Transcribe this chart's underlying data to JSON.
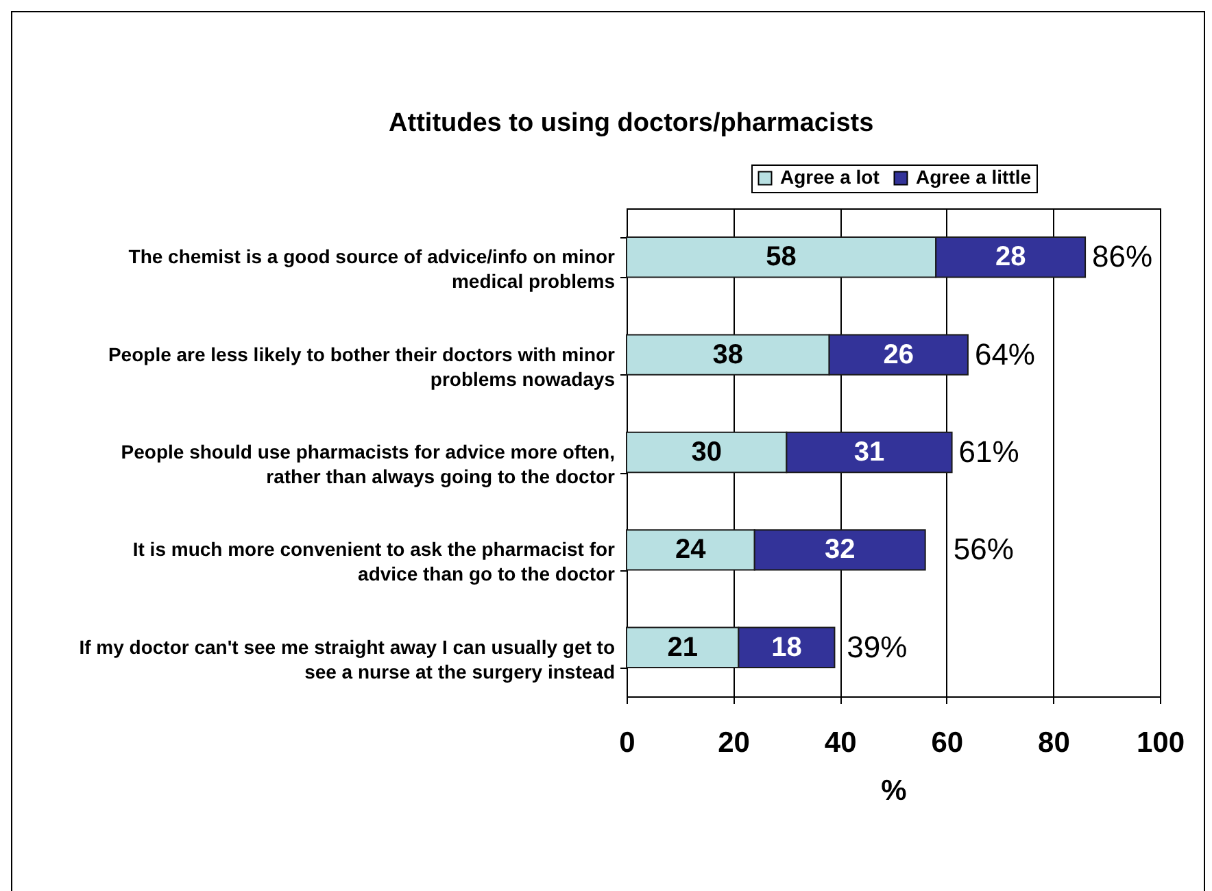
{
  "chart_data": {
    "type": "bar",
    "title": "Attitudes to using doctors/pharmacists",
    "categories": [
      "The chemist is a good source of advice/info on minor medical problems",
      "People are less likely to bother their doctors with minor problems nowadays",
      "People should use pharmacists for advice more often, rather than always going to the doctor",
      "It is much more convenient to ask the pharmacist for advice than go to the doctor",
      "If my doctor can't see me straight away I can usually get to see a nurse at the surgery instead"
    ],
    "series": [
      {
        "name": "Agree a lot",
        "color": "#b8e0e2",
        "values": [
          58,
          38,
          30,
          24,
          21
        ]
      },
      {
        "name": "Agree a little",
        "color": "#333399",
        "values": [
          28,
          26,
          31,
          32,
          18
        ]
      }
    ],
    "orientation": "horizontal",
    "stacked": true,
    "xlabel": "%",
    "xlim": [
      0,
      100
    ],
    "xticks": [
      0,
      20,
      40,
      60,
      80,
      100
    ],
    "grid": "x",
    "legend": "top",
    "data_labels": true,
    "totals": [
      "86%",
      "64%",
      "61%",
      "56%",
      "39%"
    ]
  }
}
